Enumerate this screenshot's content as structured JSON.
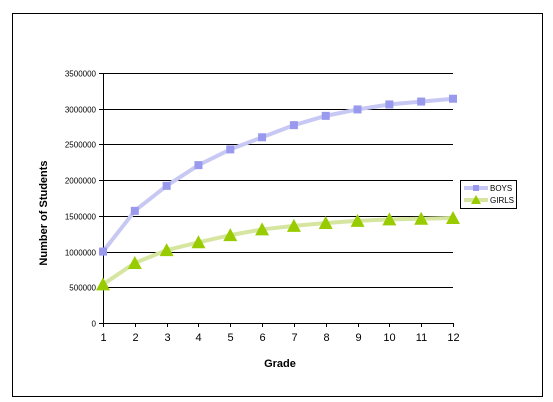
{
  "chart_data": {
    "type": "line",
    "title": "",
    "xlabel": "Grade",
    "ylabel": "Number of Students",
    "categories": [
      "1",
      "2",
      "3",
      "4",
      "5",
      "6",
      "7",
      "8",
      "9",
      "10",
      "11",
      "12"
    ],
    "ylim": [
      0,
      3500000
    ],
    "yticks": [
      "0",
      "500000",
      "1000000",
      "1500000",
      "2000000",
      "2500000",
      "3000000",
      "3500000"
    ],
    "grid": true,
    "legend_position": "right",
    "series": [
      {
        "name": "BOYS",
        "marker": "square",
        "line_color": "#c8c8f4",
        "marker_color": "#9999ee",
        "values": [
          1000000,
          1570000,
          1920000,
          2210000,
          2430000,
          2600000,
          2770000,
          2900000,
          2990000,
          3060000,
          3100000,
          3140000
        ]
      },
      {
        "name": "GIRLS",
        "marker": "triangle",
        "line_color": "#d6e6a0",
        "marker_color": "#99cc00",
        "values": [
          540000,
          840000,
          1020000,
          1130000,
          1230000,
          1310000,
          1360000,
          1400000,
          1430000,
          1450000,
          1460000,
          1470000
        ]
      }
    ]
  }
}
